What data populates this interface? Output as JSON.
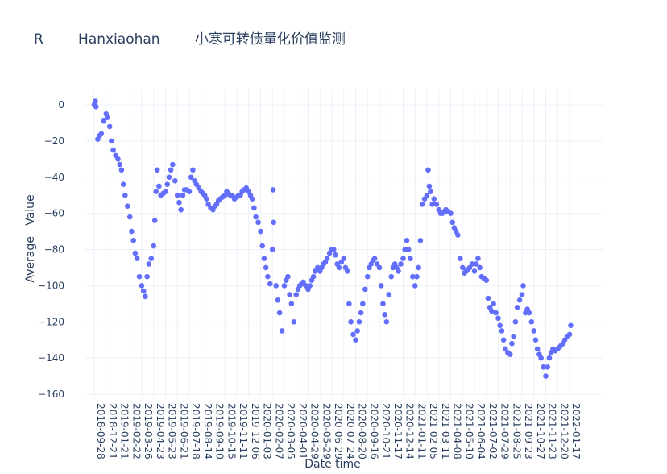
{
  "chart_data": {
    "type": "scatter",
    "title": "R        Hanxiaohan        小寒可转债量化价值监测",
    "xlabel": "Date time",
    "ylabel": "Average   Value",
    "ylim": [
      -160,
      10
    ],
    "yticks": [
      0,
      -20,
      -40,
      -60,
      -80,
      -100,
      -120,
      -140,
      -160
    ],
    "grid": true,
    "marker_color": "#636efa",
    "x_categories": [
      "2018-09-28",
      "2018-12-21",
      "2019-01-21",
      "2019-02-22",
      "2019-03-26",
      "2019-04-23",
      "2019-05-23",
      "2019-06-21",
      "2019-07-18",
      "2019-08-14",
      "2019-09-10",
      "2019-10-15",
      "2019-11-11",
      "2019-12-06",
      "2020-01-03",
      "2020-02-07",
      "2020-03-05",
      "2020-04-01",
      "2020-04-29",
      "2020-05-29",
      "2020-06-29",
      "2020-07-24",
      "2020-08-20",
      "2020-09-16",
      "2020-10-21",
      "2020-11-17",
      "2020-12-14",
      "2021-01-11",
      "2021-02-05",
      "2021-03-11",
      "2021-04-08",
      "2021-05-10",
      "2021-06-04",
      "2021-07-02",
      "2021-07-29",
      "2021-08-25",
      "2021-09-23",
      "2021-10-27",
      "2021-11-23",
      "2021-12-20",
      "2022-01-17"
    ],
    "points_note": "x = position in tick-category index units",
    "points": [
      [
        0,
        0
      ],
      [
        0.1,
        2
      ],
      [
        0.15,
        -1
      ],
      [
        0.3,
        -19
      ],
      [
        0.45,
        -17
      ],
      [
        0.6,
        -16
      ],
      [
        0.8,
        -9
      ],
      [
        1,
        -5
      ],
      [
        1.1,
        -7
      ],
      [
        1.3,
        -12
      ],
      [
        1.45,
        -20
      ],
      [
        1.6,
        -25
      ],
      [
        1.8,
        -28
      ],
      [
        2,
        -30
      ],
      [
        2.15,
        -33
      ],
      [
        2.3,
        -36
      ],
      [
        2.45,
        -44
      ],
      [
        2.6,
        -50
      ],
      [
        2.8,
        -56
      ],
      [
        3,
        -62
      ],
      [
        3.15,
        -70
      ],
      [
        3.3,
        -75
      ],
      [
        3.45,
        -82
      ],
      [
        3.6,
        -85
      ],
      [
        3.8,
        -95
      ],
      [
        4,
        -100
      ],
      [
        4.15,
        -103
      ],
      [
        4.3,
        -106
      ],
      [
        4.45,
        -95
      ],
      [
        4.6,
        -88
      ],
      [
        4.8,
        -85
      ],
      [
        5,
        -78
      ],
      [
        5.1,
        -64
      ],
      [
        5.2,
        -48
      ],
      [
        5.3,
        -36
      ],
      [
        5.45,
        -45
      ],
      [
        5.6,
        -50
      ],
      [
        5.8,
        -49
      ],
      [
        6,
        -48
      ],
      [
        6.15,
        -44
      ],
      [
        6.3,
        -40
      ],
      [
        6.45,
        -36
      ],
      [
        6.6,
        -33
      ],
      [
        6.8,
        -42
      ],
      [
        7,
        -50
      ],
      [
        7.15,
        -54
      ],
      [
        7.3,
        -58
      ],
      [
        7.45,
        -50
      ],
      [
        7.6,
        -47
      ],
      [
        7.8,
        -47
      ],
      [
        8,
        -48
      ],
      [
        8.15,
        -40
      ],
      [
        8.3,
        -36
      ],
      [
        8.45,
        -42
      ],
      [
        8.6,
        -44
      ],
      [
        8.8,
        -46
      ],
      [
        9,
        -48
      ],
      [
        9.15,
        -49
      ],
      [
        9.3,
        -50
      ],
      [
        9.45,
        -52
      ],
      [
        9.6,
        -55
      ],
      [
        9.8,
        -57
      ],
      [
        10,
        -58
      ],
      [
        10.15,
        -56
      ],
      [
        10.3,
        -55
      ],
      [
        10.45,
        -53
      ],
      [
        10.6,
        -52
      ],
      [
        10.8,
        -51
      ],
      [
        11,
        -50
      ],
      [
        11.15,
        -48
      ],
      [
        11.3,
        -49
      ],
      [
        11.45,
        -50
      ],
      [
        11.6,
        -50
      ],
      [
        11.8,
        -52
      ],
      [
        12,
        -51
      ],
      [
        12.15,
        -50
      ],
      [
        12.3,
        -50
      ],
      [
        12.45,
        -48
      ],
      [
        12.6,
        -47
      ],
      [
        12.8,
        -46
      ],
      [
        13,
        -48
      ],
      [
        13.15,
        -50
      ],
      [
        13.3,
        -52
      ],
      [
        13.45,
        -57
      ],
      [
        13.6,
        -62
      ],
      [
        13.8,
        -65
      ],
      [
        14,
        -70
      ],
      [
        14.15,
        -78
      ],
      [
        14.3,
        -85
      ],
      [
        14.45,
        -90
      ],
      [
        14.6,
        -95
      ],
      [
        14.8,
        -99
      ],
      [
        15,
        -80
      ],
      [
        15.05,
        -47
      ],
      [
        15.1,
        -65
      ],
      [
        15.3,
        -100
      ],
      [
        15.45,
        -108
      ],
      [
        15.6,
        -115
      ],
      [
        15.8,
        -125
      ],
      [
        16,
        -100
      ],
      [
        16.15,
        -97
      ],
      [
        16.3,
        -95
      ],
      [
        16.45,
        -105
      ],
      [
        16.6,
        -110
      ],
      [
        16.8,
        -120
      ],
      [
        17,
        -105
      ],
      [
        17.15,
        -102
      ],
      [
        17.3,
        -100
      ],
      [
        17.45,
        -99
      ],
      [
        17.6,
        -98
      ],
      [
        17.8,
        -100
      ],
      [
        18,
        -102
      ],
      [
        18.15,
        -100
      ],
      [
        18.3,
        -97
      ],
      [
        18.45,
        -95
      ],
      [
        18.6,
        -92
      ],
      [
        18.8,
        -90
      ],
      [
        19,
        -92
      ],
      [
        19.15,
        -90
      ],
      [
        19.3,
        -88
      ],
      [
        19.45,
        -87
      ],
      [
        19.6,
        -85
      ],
      [
        19.8,
        -82
      ],
      [
        20,
        -80
      ],
      [
        20.15,
        -80
      ],
      [
        20.3,
        -83
      ],
      [
        20.45,
        -88
      ],
      [
        20.6,
        -90
      ],
      [
        20.8,
        -87
      ],
      [
        21,
        -85
      ],
      [
        21.15,
        -90
      ],
      [
        21.3,
        -92
      ],
      [
        21.45,
        -110
      ],
      [
        21.6,
        -120
      ],
      [
        21.8,
        -127
      ],
      [
        22,
        -130
      ],
      [
        22.15,
        -125
      ],
      [
        22.3,
        -120
      ],
      [
        22.45,
        -115
      ],
      [
        22.6,
        -110
      ],
      [
        22.8,
        -102
      ],
      [
        23,
        -95
      ],
      [
        23.15,
        -90
      ],
      [
        23.3,
        -88
      ],
      [
        23.45,
        -86
      ],
      [
        23.6,
        -85
      ],
      [
        23.8,
        -88
      ],
      [
        24,
        -90
      ],
      [
        24.15,
        -100
      ],
      [
        24.3,
        -110
      ],
      [
        24.45,
        -116
      ],
      [
        24.6,
        -120
      ],
      [
        24.8,
        -105
      ],
      [
        25,
        -95
      ],
      [
        25.15,
        -90
      ],
      [
        25.3,
        -88
      ],
      [
        25.45,
        -90
      ],
      [
        25.6,
        -92
      ],
      [
        25.8,
        -88
      ],
      [
        26,
        -85
      ],
      [
        26.15,
        -80
      ],
      [
        26.3,
        -75
      ],
      [
        26.45,
        -80
      ],
      [
        26.6,
        -85
      ],
      [
        26.8,
        -95
      ],
      [
        27,
        -100
      ],
      [
        27.15,
        -95
      ],
      [
        27.3,
        -90
      ],
      [
        27.45,
        -75
      ],
      [
        27.6,
        -55
      ],
      [
        27.8,
        -52
      ],
      [
        28,
        -50
      ],
      [
        28.1,
        -36
      ],
      [
        28.2,
        -45
      ],
      [
        28.3,
        -48
      ],
      [
        28.45,
        -55
      ],
      [
        28.6,
        -52
      ],
      [
        28.8,
        -55
      ],
      [
        29,
        -58
      ],
      [
        29.15,
        -60
      ],
      [
        29.3,
        -60
      ],
      [
        29.45,
        -59
      ],
      [
        29.6,
        -58
      ],
      [
        29.8,
        -59
      ],
      [
        30,
        -60
      ],
      [
        30.15,
        -65
      ],
      [
        30.3,
        -68
      ],
      [
        30.45,
        -70
      ],
      [
        30.6,
        -72
      ],
      [
        30.8,
        -85
      ],
      [
        31,
        -90
      ],
      [
        31.15,
        -93
      ],
      [
        31.3,
        -92
      ],
      [
        31.45,
        -91
      ],
      [
        31.6,
        -90
      ],
      [
        31.8,
        -88
      ],
      [
        32,
        -92
      ],
      [
        32.15,
        -88
      ],
      [
        32.3,
        -85
      ],
      [
        32.45,
        -90
      ],
      [
        32.6,
        -95
      ],
      [
        32.8,
        -96
      ],
      [
        33,
        -97
      ],
      [
        33.15,
        -107
      ],
      [
        33.3,
        -112
      ],
      [
        33.45,
        -114
      ],
      [
        33.6,
        -110
      ],
      [
        33.8,
        -115
      ],
      [
        34,
        -118
      ],
      [
        34.15,
        -122
      ],
      [
        34.3,
        -125
      ],
      [
        34.45,
        -130
      ],
      [
        34.6,
        -135
      ],
      [
        34.8,
        -137
      ],
      [
        35,
        -138
      ],
      [
        35.15,
        -132
      ],
      [
        35.3,
        -128
      ],
      [
        35.45,
        -120
      ],
      [
        35.6,
        -112
      ],
      [
        35.8,
        -108
      ],
      [
        36,
        -105
      ],
      [
        36.1,
        -100
      ],
      [
        36.3,
        -115
      ],
      [
        36.45,
        -113
      ],
      [
        36.6,
        -115
      ],
      [
        36.8,
        -120
      ],
      [
        37,
        -125
      ],
      [
        37.15,
        -130
      ],
      [
        37.3,
        -135
      ],
      [
        37.45,
        -138
      ],
      [
        37.6,
        -140
      ],
      [
        37.8,
        -145
      ],
      [
        38,
        -150
      ],
      [
        38.15,
        -145
      ],
      [
        38.3,
        -140
      ],
      [
        38.45,
        -137
      ],
      [
        38.6,
        -135
      ],
      [
        38.8,
        -136
      ],
      [
        39,
        -135
      ],
      [
        39.15,
        -134
      ],
      [
        39.3,
        -133
      ],
      [
        39.45,
        -132
      ],
      [
        39.6,
        -130
      ],
      [
        39.8,
        -128
      ],
      [
        40,
        -127
      ],
      [
        40.1,
        -122
      ]
    ]
  }
}
